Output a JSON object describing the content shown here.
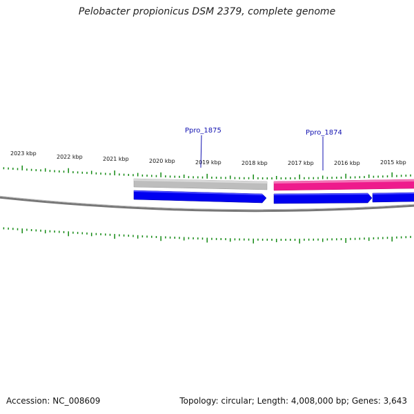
{
  "title": "Pelobacter propionicus DSM 2379, complete genome",
  "footer": {
    "accession": "Accession: NC_008609",
    "summary": "Topology: circular; Length: 4,008,000 bp; Genes: 3,643"
  },
  "colors": {
    "forward_strand": "#0000f0",
    "highlight": "#ee1b8c",
    "other": "#bdbdbd",
    "tick": "#118811",
    "backbone": "#777777"
  },
  "scale_labels": [
    {
      "kbp": 2023,
      "text": "2023 kbp"
    },
    {
      "kbp": 2022,
      "text": "2022 kbp"
    },
    {
      "kbp": 2021,
      "text": "2021 kbp"
    },
    {
      "kbp": 2020,
      "text": "2020 kbp"
    },
    {
      "kbp": 2019,
      "text": "2019 kbp"
    },
    {
      "kbp": 2018,
      "text": "2018 kbp"
    },
    {
      "kbp": 2017,
      "text": "2017 kbp"
    },
    {
      "kbp": 2016,
      "text": "2016 kbp"
    },
    {
      "kbp": 2015,
      "text": "2015 kbp"
    }
  ],
  "genes": [
    {
      "label": "Ppro_1875"
    },
    {
      "label": "Ppro_1874"
    }
  ]
}
